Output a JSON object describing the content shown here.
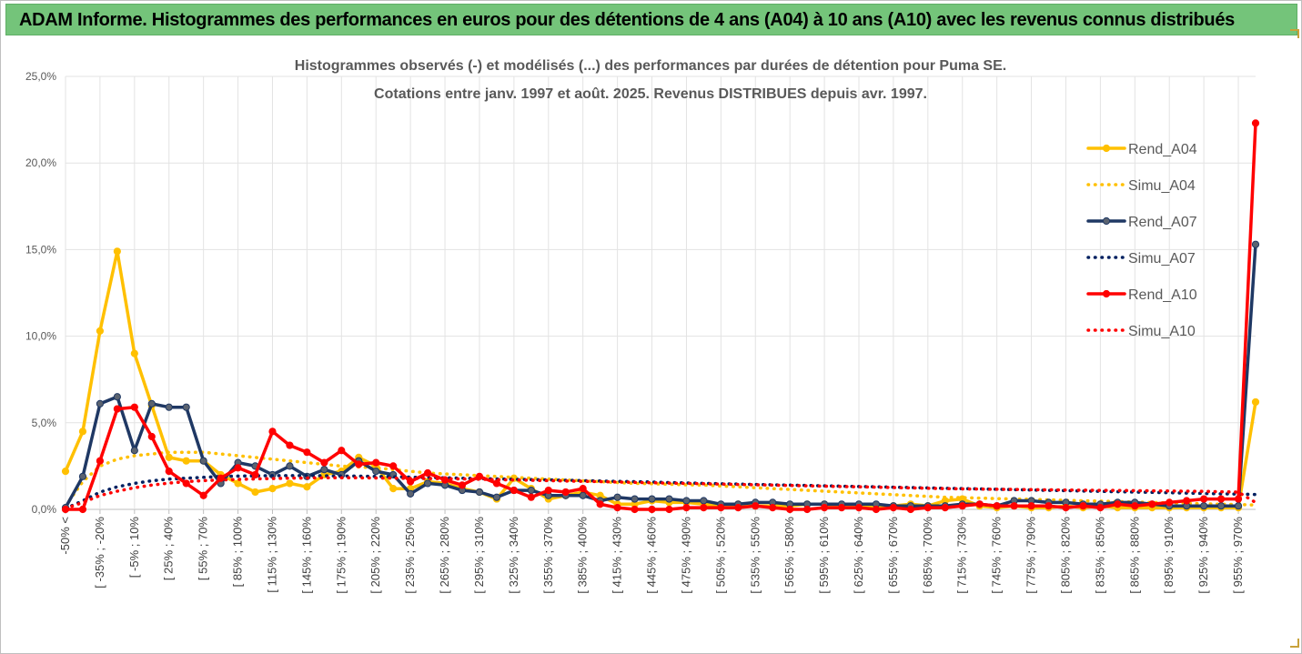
{
  "header": {
    "title": "ADAM Informe. Histogrammes des performances en euros pour des détentions de 4 ans (A04) à 10 ans (A10) avec les revenus connus distribués"
  },
  "chart_data": {
    "type": "line",
    "title": "Histogrammes observés (-) et modélisés (...) des performances par durées de détention pour Puma SE.",
    "subtitle": "Cotations entre janv. 1997 et août. 2025. Revenus DISTRIBUES depuis avr. 1997.",
    "xlabel": "",
    "ylabel": "",
    "ylim": [
      0,
      25
    ],
    "y_ticks": [
      "0,0%",
      "5,0%",
      "10,0%",
      "15,0%",
      "20,0%",
      "25,0%"
    ],
    "grid": true,
    "legend_position": "right",
    "tick_labels": [
      "-50% <",
      "[ -35% ; -20%",
      "[ -5% ; 10%",
      "[ 25% ; 40%",
      "[ 55% ; 70%",
      "[ 85% ; 100%",
      "[ 115% ; 130%",
      "[ 145% ; 160%",
      "[ 175% ; 190%",
      "[ 205% ; 220%",
      "[ 235% ; 250%",
      "[ 265% ; 280%",
      "[ 295% ; 310%",
      "[ 325% ; 340%",
      "[ 355% ; 370%",
      "[ 385% ; 400%",
      "[ 415% ; 430%",
      "[ 445% ; 460%",
      "[ 475% ; 490%",
      "[ 505% ; 520%",
      "[ 535% ; 550%",
      "[ 565% ; 580%",
      "[ 595% ; 610%",
      "[ 625% ; 640%",
      "[ 655% ; 670%",
      "[ 685% ; 700%",
      "[ 715% ; 730%",
      "[ 745% ; 760%",
      "[ 775% ; 790%",
      "[ 805% ; 820%",
      "[ 835% ; 850%",
      "[ 865% ; 880%",
      "[ 895% ; 910%",
      "[ 925% ; 940%",
      "[ 955% ; 970%"
    ],
    "series": [
      {
        "name": "Rend_A04",
        "color": "#ffc000",
        "style": "solid",
        "markers": true,
        "values": [
          2.2,
          4.5,
          10.3,
          14.9,
          9.0,
          6.0,
          3.0,
          2.8,
          2.8,
          2.0,
          1.5,
          1.0,
          1.2,
          1.5,
          1.3,
          2.0,
          2.2,
          3.0,
          2.5,
          1.2,
          1.2,
          1.6,
          1.5,
          1.2,
          1.0,
          0.6,
          1.8,
          1.2,
          0.6,
          0.8,
          1.0,
          0.8,
          0.3,
          0.3,
          0.5,
          0.4,
          0.4,
          0.3,
          0.2,
          0.3,
          0.2,
          0.2,
          0.2,
          0.3,
          0.3,
          0.2,
          0.2,
          0.1,
          0.2,
          0.3,
          0.2,
          0.5,
          0.6,
          0.2,
          0.1,
          0.2,
          0.1,
          0.1,
          0.2,
          0.1,
          0.2,
          0.1,
          0.1,
          0.1,
          0.1,
          0.1,
          0.1,
          0.1,
          0.1,
          6.2
        ]
      },
      {
        "name": "Simu_A04",
        "color": "#ffc000",
        "style": "dotted",
        "markers": false,
        "values": [
          0.2,
          1.6,
          2.5,
          2.9,
          3.1,
          3.2,
          3.3,
          3.3,
          3.3,
          3.2,
          3.1,
          3.0,
          2.9,
          2.8,
          2.7,
          2.6,
          2.5,
          2.45,
          2.4,
          2.3,
          2.2,
          2.1,
          2.05,
          2.0,
          1.95,
          1.9,
          1.85,
          1.8,
          1.75,
          1.7,
          1.65,
          1.6,
          1.55,
          1.5,
          1.48,
          1.45,
          1.42,
          1.4,
          1.35,
          1.3,
          1.25,
          1.2,
          1.15,
          1.1,
          1.05,
          1.0,
          0.95,
          0.9,
          0.85,
          0.8,
          0.75,
          0.7,
          0.68,
          0.65,
          0.62,
          0.6,
          0.58,
          0.55,
          0.52,
          0.5,
          0.48,
          0.45,
          0.42,
          0.4,
          0.38,
          0.35,
          0.32,
          0.3,
          0.28,
          0.25
        ]
      },
      {
        "name": "Rend_A07",
        "color": "#1f3864",
        "style": "solid",
        "markers": true,
        "values": [
          0.1,
          1.9,
          6.1,
          6.5,
          3.4,
          6.1,
          5.9,
          5.9,
          2.8,
          1.5,
          2.7,
          2.5,
          2.0,
          2.5,
          1.9,
          2.3,
          2.0,
          2.8,
          2.2,
          2.0,
          0.9,
          1.5,
          1.4,
          1.1,
          1.0,
          0.7,
          1.1,
          1.1,
          0.8,
          0.8,
          0.8,
          0.5,
          0.7,
          0.6,
          0.6,
          0.6,
          0.5,
          0.5,
          0.3,
          0.3,
          0.4,
          0.4,
          0.3,
          0.3,
          0.3,
          0.3,
          0.3,
          0.3,
          0.2,
          0.2,
          0.2,
          0.2,
          0.3,
          0.3,
          0.2,
          0.5,
          0.5,
          0.4,
          0.4,
          0.3,
          0.3,
          0.4,
          0.4,
          0.3,
          0.2,
          0.2,
          0.2,
          0.2,
          0.2,
          15.3
        ]
      },
      {
        "name": "Simu_A07",
        "color": "#002060",
        "style": "dotted",
        "markers": false,
        "values": [
          0.05,
          0.5,
          1.0,
          1.3,
          1.5,
          1.65,
          1.75,
          1.8,
          1.85,
          1.9,
          1.92,
          1.94,
          1.95,
          1.95,
          1.95,
          1.94,
          1.93,
          1.92,
          1.9,
          1.88,
          1.86,
          1.84,
          1.82,
          1.8,
          1.78,
          1.76,
          1.74,
          1.72,
          1.7,
          1.68,
          1.66,
          1.64,
          1.62,
          1.6,
          1.58,
          1.55,
          1.53,
          1.5,
          1.48,
          1.46,
          1.44,
          1.42,
          1.4,
          1.38,
          1.36,
          1.34,
          1.32,
          1.3,
          1.28,
          1.26,
          1.24,
          1.22,
          1.2,
          1.18,
          1.16,
          1.14,
          1.12,
          1.1,
          1.08,
          1.06,
          1.04,
          1.02,
          1.0,
          0.98,
          0.96,
          0.94,
          0.92,
          0.9,
          0.88,
          0.86
        ]
      },
      {
        "name": "Rend_A10",
        "color": "#ff0000",
        "style": "solid",
        "markers": true,
        "values": [
          0.0,
          0.0,
          2.8,
          5.8,
          5.9,
          4.2,
          2.2,
          1.5,
          0.8,
          1.8,
          2.4,
          2.0,
          4.5,
          3.7,
          3.3,
          2.7,
          3.4,
          2.6,
          2.7,
          2.5,
          1.6,
          2.1,
          1.7,
          1.4,
          1.9,
          1.5,
          1.1,
          0.7,
          1.1,
          1.0,
          1.2,
          0.3,
          0.1,
          0.0,
          0.0,
          0.0,
          0.1,
          0.1,
          0.1,
          0.1,
          0.2,
          0.1,
          0.0,
          0.0,
          0.1,
          0.1,
          0.1,
          0.0,
          0.1,
          0.0,
          0.1,
          0.1,
          0.2,
          0.3,
          0.2,
          0.2,
          0.2,
          0.2,
          0.1,
          0.2,
          0.1,
          0.3,
          0.2,
          0.3,
          0.4,
          0.5,
          0.6,
          0.6,
          0.6,
          22.3
        ]
      },
      {
        "name": "Simu_A10",
        "color": "#ff0000",
        "style": "dotted",
        "markers": false,
        "values": [
          0.05,
          0.4,
          0.8,
          1.05,
          1.25,
          1.4,
          1.52,
          1.6,
          1.66,
          1.7,
          1.73,
          1.76,
          1.78,
          1.8,
          1.81,
          1.82,
          1.82,
          1.82,
          1.81,
          1.8,
          1.79,
          1.78,
          1.77,
          1.76,
          1.74,
          1.72,
          1.7,
          1.68,
          1.66,
          1.64,
          1.62,
          1.6,
          1.58,
          1.56,
          1.54,
          1.52,
          1.5,
          1.48,
          1.46,
          1.44,
          1.42,
          1.4,
          1.38,
          1.36,
          1.34,
          1.32,
          1.3,
          1.28,
          1.26,
          1.24,
          1.22,
          1.2,
          1.18,
          1.17,
          1.16,
          1.15,
          1.14,
          1.13,
          1.12,
          1.11,
          1.1,
          1.09,
          1.08,
          1.07,
          1.06,
          1.05,
          1.04,
          1.02,
          1.0,
          0.4
        ]
      }
    ]
  }
}
